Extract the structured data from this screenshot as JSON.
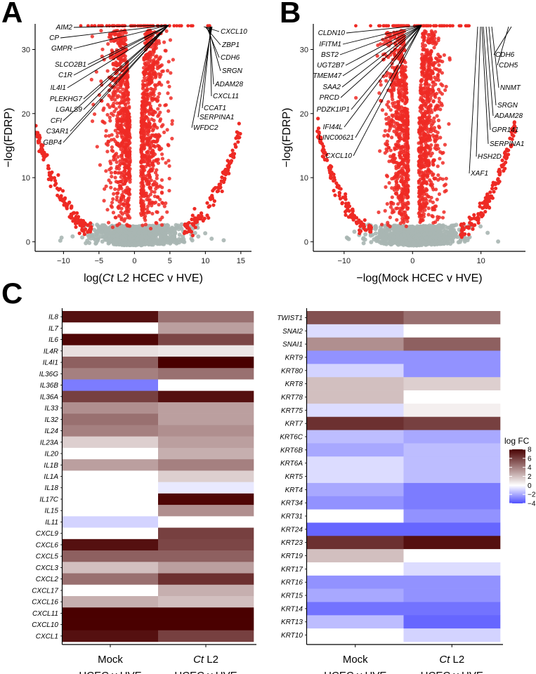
{
  "panel_labels": {
    "a": "A",
    "b": "B",
    "c": "C"
  },
  "colors": {
    "sig": "#ee2a24",
    "nonsig": "#a8b6b3",
    "high": "#4a0000",
    "mid": "#ffffff",
    "low": "#5050ff"
  },
  "chart_data": [
    {
      "type": "scatter",
      "title": "",
      "xlabel_pre": "log(",
      "xlabel_italic": "Ct",
      "xlabel_post": " L2 HCEC v HVE)",
      "ylabel": "−log(FDRP)",
      "x_ticks": [
        -10,
        -5,
        0,
        5,
        10,
        15
      ],
      "y_ticks": [
        0,
        10,
        20,
        30
      ],
      "xlim": [
        -14,
        16.5
      ],
      "ylim": [
        -1.5,
        34
      ],
      "x_tick_labels": [
        "−10",
        "−5",
        "0",
        "5",
        "10",
        "15"
      ],
      "y_tick_labels": [
        "0",
        "10",
        "20",
        "30"
      ],
      "left_genes": [
        "AIM2",
        "CP",
        "GMPR",
        "SLCO2B1",
        "C1R",
        "IL4I1",
        "PLEKHG7",
        "LGALS9",
        "CFI",
        "C3AR1",
        "GBP4"
      ],
      "right_genes": [
        "CXCL10",
        "ZBP1",
        "CDH6",
        "SRGN",
        "ADAM28",
        "CXCL11",
        "CCAT1",
        "SERPINA1",
        "WFDC2"
      ]
    },
    {
      "type": "scatter",
      "title": "",
      "xlabel": "−log(Mock HCEC v HVE)",
      "ylabel": "−log(FDRP)",
      "x_ticks": [
        -10,
        0,
        10
      ],
      "y_ticks": [
        0,
        10,
        20,
        30
      ],
      "xlim": [
        -14.5,
        16.5
      ],
      "ylim": [
        -1.5,
        34
      ],
      "x_tick_labels": [
        "−10",
        "0",
        "10"
      ],
      "y_tick_labels": [
        "0",
        "10",
        "20",
        "30"
      ],
      "left_genes": [
        "CLDN10",
        "IFITM1",
        "BST2",
        "UGT2B7",
        "TMEM47",
        "SAA2",
        "PRCD",
        "PDZK1IP1",
        "IFI44L",
        "LINC00621",
        "CXCL10"
      ],
      "right_genes": [
        "CDH6",
        "CDH5",
        "NNMT",
        "SRGN",
        "ADAM28",
        "GPR141",
        "SERPINA1",
        "HSH2D",
        "XAF1"
      ]
    },
    {
      "type": "heatmap",
      "columns": [
        "Mock",
        "Ct L2"
      ],
      "column_label_line1": [
        "Mock",
        ""
      ],
      "column_label_italic": [
        "",
        "Ct"
      ],
      "column_label_rest": [
        "",
        " L2"
      ],
      "column_label_line2": [
        "HCEC v HVE",
        "HCEC v HVE"
      ],
      "rows": [
        "IL8",
        "IL7",
        "IL6",
        "IL4R",
        "IL4I1",
        "IL36G",
        "IL36B",
        "IL36A",
        "IL33",
        "IL32",
        "IL24",
        "IL23A",
        "IL20",
        "IL1B",
        "IL1A",
        "IL18",
        "IL17C",
        "IL15",
        "IL11",
        "CXCL9",
        "CXCL6",
        "CXCL5",
        "CXCL3",
        "CXCL2",
        "CXCL17",
        "CXCL16",
        "CXCL11",
        "CXCL10",
        "CXCL1"
      ],
      "values": [
        [
          7.5,
          4.5
        ],
        [
          0,
          3
        ],
        [
          7.8,
          5.8
        ],
        [
          1,
          0.8
        ],
        [
          5,
          8
        ],
        [
          4,
          4.5
        ],
        [
          -3,
          0
        ],
        [
          6,
          7.5
        ],
        [
          3.5,
          3
        ],
        [
          4.5,
          3
        ],
        [
          4,
          3.5
        ],
        [
          1.5,
          3
        ],
        [
          0,
          2.5
        ],
        [
          3,
          4
        ],
        [
          0,
          1.5
        ],
        [
          0,
          -0.5
        ],
        [
          0,
          7.8
        ],
        [
          0,
          3.5
        ],
        [
          -1,
          0
        ],
        [
          0,
          6
        ],
        [
          7.5,
          5.8
        ],
        [
          5,
          5
        ],
        [
          2,
          3
        ],
        [
          4.5,
          6.5
        ],
        [
          0,
          2.5
        ],
        [
          2.5,
          2
        ],
        [
          8,
          8
        ],
        [
          8,
          8
        ],
        [
          7.5,
          6
        ]
      ],
      "zlim": [
        -4,
        8
      ]
    },
    {
      "type": "heatmap",
      "columns": [
        "Mock",
        "Ct L2"
      ],
      "rows": [
        "TWIST1",
        "SNAI2",
        "SNAI1",
        "KRT9",
        "KRT80",
        "KRT8",
        "KRT78",
        "KRT75",
        "KRT7",
        "KRT6C",
        "KRT6B",
        "KRT6A",
        "KRT5",
        "KRT4",
        "KRT34",
        "KRT31",
        "KRT24",
        "KRT23",
        "KRT19",
        "KRT17",
        "KRT16",
        "KRT15",
        "KRT14",
        "KRT13",
        "KRT10"
      ],
      "values": [
        [
          5.5,
          4.5
        ],
        [
          -0.8,
          0
        ],
        [
          3.5,
          5
        ],
        [
          -2.5,
          -2.5
        ],
        [
          -1,
          -2.5
        ],
        [
          2,
          1.5
        ],
        [
          2,
          0
        ],
        [
          -0.8,
          0.5
        ],
        [
          6.5,
          6
        ],
        [
          -1.5,
          -2
        ],
        [
          -2,
          -1.5
        ],
        [
          -0.8,
          -1.5
        ],
        [
          -0.8,
          -1.5
        ],
        [
          -2,
          -3
        ],
        [
          -2.5,
          -3
        ],
        [
          0,
          -2.5
        ],
        [
          -3.5,
          -3.5
        ],
        [
          6.5,
          7.5
        ],
        [
          2,
          0
        ],
        [
          0,
          -0.8
        ],
        [
          -2.5,
          -2.5
        ],
        [
          -2,
          -2.5
        ],
        [
          -3.2,
          -3.2
        ],
        [
          -1.5,
          -3.5
        ],
        [
          0,
          -1
        ]
      ],
      "zlim": [
        -4,
        8
      ],
      "legend_title": "log FC",
      "legend_ticks": [
        8,
        6,
        4,
        2,
        0,
        -2,
        -4
      ],
      "legend_tick_labels": [
        "8",
        "6",
        "4",
        "2",
        "0",
        "−2",
        "−4"
      ]
    }
  ]
}
